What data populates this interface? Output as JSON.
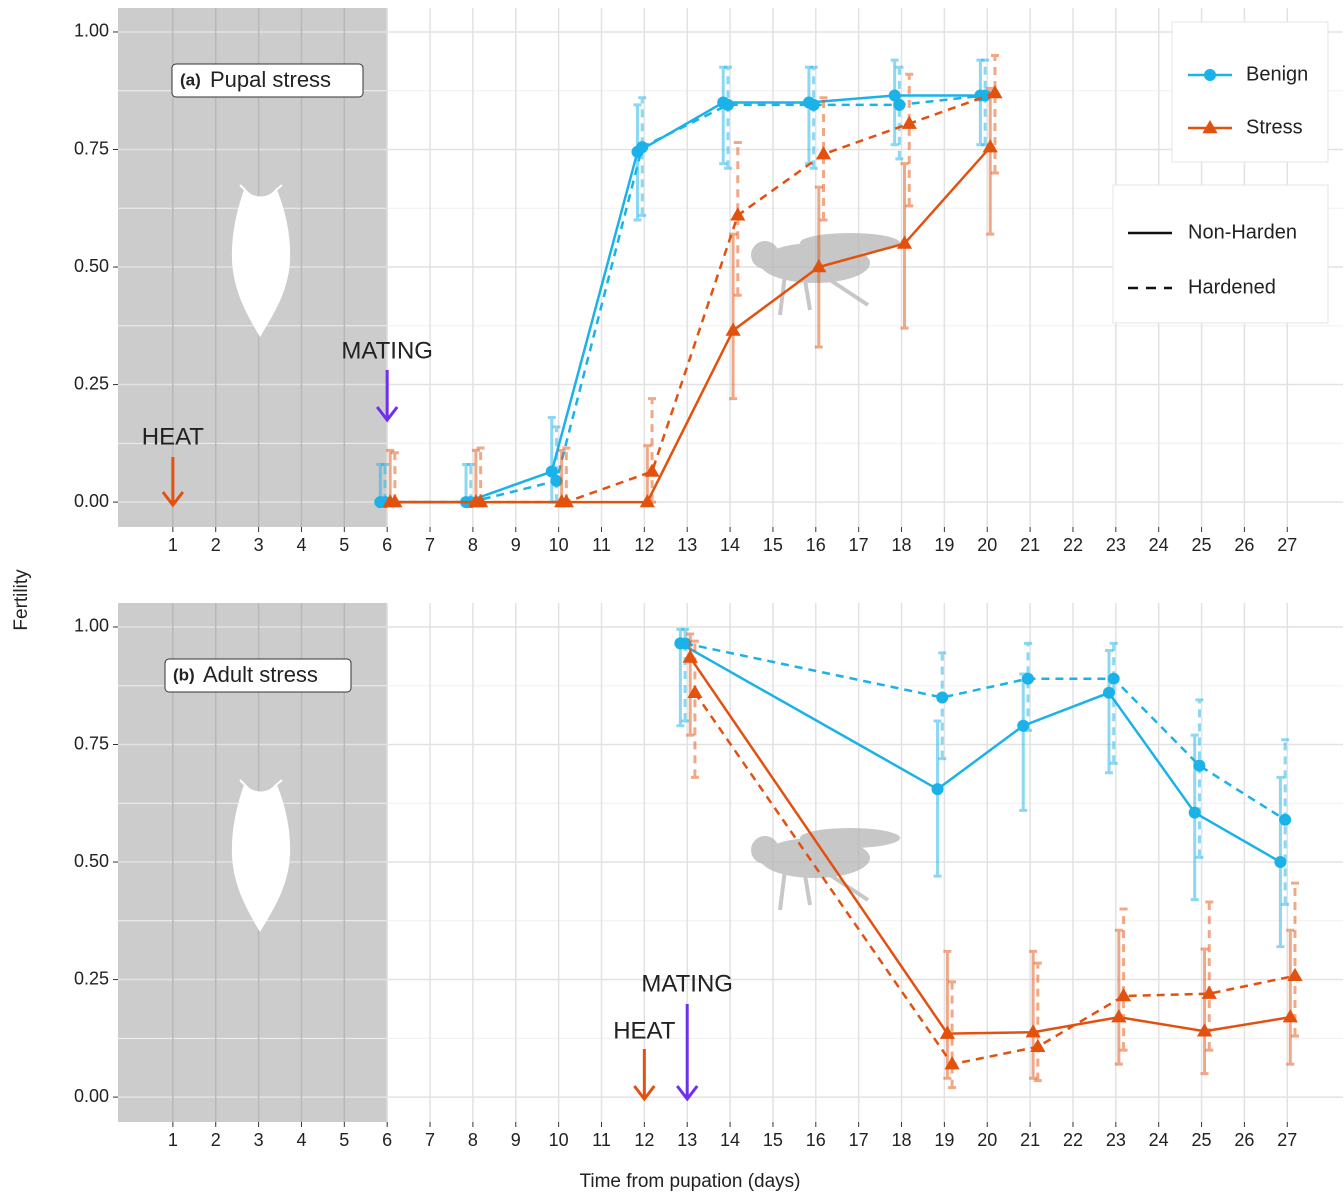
{
  "y_label": "Fertility",
  "x_label": "Time from pupation (days)",
  "legend": {
    "color": [
      {
        "name": "Benign",
        "color": "#1ab2e8",
        "marker": "circle"
      },
      {
        "name": "Stress",
        "color": "#e3510f",
        "marker": "triangle"
      }
    ],
    "linetype": [
      {
        "name": "Non-Harden",
        "dash": "solid"
      },
      {
        "name": "Hardened",
        "dash": "dashed"
      }
    ]
  },
  "chart_data": [
    {
      "type": "line",
      "panel_label": "(a)",
      "title": "Pupal stress",
      "x": [
        6,
        8,
        10,
        12,
        14,
        16,
        18,
        20
      ],
      "shade_end": 6,
      "annotations": [
        {
          "text": "HEAT",
          "x": 1,
          "color": "#e3510f"
        },
        {
          "text": "MATING",
          "x": 6,
          "color": "#6e30ee"
        }
      ],
      "series": [
        {
          "name": "Benign",
          "linetype": "Non-Harden",
          "color": "#1ab2e8",
          "marker": "circle",
          "dash": "solid",
          "values": [
            0,
            0,
            0.065,
            0.745,
            0.85,
            0.85,
            0.865,
            0.865
          ],
          "lower": [
            0,
            0,
            0,
            0.6,
            0.72,
            0.72,
            0.76,
            0.76
          ],
          "upper": [
            0.08,
            0.08,
            0.18,
            0.845,
            0.925,
            0.925,
            0.94,
            0.94
          ]
        },
        {
          "name": "Benign",
          "linetype": "Hardened",
          "color": "#1ab2e8",
          "marker": "circle",
          "dash": "dashed",
          "values": [
            0,
            0,
            0.045,
            0.755,
            0.845,
            0.845,
            0.845,
            0.865
          ],
          "lower": [
            0,
            0,
            0,
            0.61,
            0.71,
            0.71,
            0.73,
            0.76
          ],
          "upper": [
            0.08,
            0.08,
            0.16,
            0.86,
            0.925,
            0.925,
            0.925,
            0.94
          ]
        },
        {
          "name": "Stress",
          "linetype": "Non-Harden",
          "color": "#e3510f",
          "marker": "triangle",
          "dash": "solid",
          "values": [
            0,
            0,
            0,
            0,
            0.365,
            0.5,
            0.55,
            0.755
          ],
          "lower": [
            0,
            0,
            0,
            0,
            0.22,
            0.33,
            0.37,
            0.57
          ],
          "upper": [
            0.11,
            0.11,
            0.11,
            0.12,
            0.57,
            0.67,
            0.72,
            0.88
          ]
        },
        {
          "name": "Stress",
          "linetype": "Hardened",
          "color": "#e3510f",
          "marker": "triangle",
          "dash": "dashed",
          "values": [
            0,
            0,
            0,
            0.065,
            0.61,
            0.74,
            0.805,
            0.87
          ],
          "lower": [
            0,
            0,
            0,
            0,
            0.44,
            0.6,
            0.63,
            0.7
          ],
          "upper": [
            0.105,
            0.115,
            0.115,
            0.22,
            0.765,
            0.86,
            0.91,
            0.95
          ]
        }
      ],
      "xlim": [
        -0.28,
        28.3
      ],
      "ylim": [
        -0.053,
        1.051
      ],
      "xticks": [
        1,
        2,
        3,
        4,
        5,
        6,
        7,
        8,
        9,
        10,
        11,
        12,
        13,
        14,
        15,
        16,
        17,
        18,
        19,
        20,
        21,
        22,
        23,
        24,
        25,
        26,
        27
      ],
      "yticks": [
        {
          "value": 0,
          "label": "0.00"
        },
        {
          "value": 0.25,
          "label": "0.25"
        },
        {
          "value": 0.5,
          "label": "0.50"
        },
        {
          "value": 0.75,
          "label": "0.75"
        },
        {
          "value": 1,
          "label": "1.00"
        }
      ],
      "grid": true
    },
    {
      "type": "line",
      "panel_label": "(b)",
      "title": "Adult stress",
      "x": [
        13,
        19,
        21,
        23,
        25,
        27
      ],
      "shade_end": 6,
      "annotations": [
        {
          "text": "HEAT",
          "x": 12,
          "color": "#e3510f"
        },
        {
          "text": "MATING",
          "x": 13,
          "color": "#6e30ee"
        }
      ],
      "series": [
        {
          "name": "Benign",
          "linetype": "Non-Harden",
          "color": "#1ab2e8",
          "marker": "circle",
          "dash": "solid",
          "values": [
            0.965,
            0.655,
            0.79,
            0.86,
            0.605,
            0.5
          ],
          "lower": [
            0.79,
            0.47,
            0.61,
            0.69,
            0.42,
            0.32
          ],
          "upper": [
            0.995,
            0.8,
            0.9,
            0.95,
            0.77,
            0.68
          ]
        },
        {
          "name": "Benign",
          "linetype": "Hardened",
          "color": "#1ab2e8",
          "marker": "circle",
          "dash": "dashed",
          "values": [
            0.965,
            0.85,
            0.89,
            0.89,
            0.705,
            0.59
          ],
          "lower": [
            0.8,
            0.72,
            0.78,
            0.71,
            0.51,
            0.41
          ],
          "upper": [
            0.995,
            0.945,
            0.965,
            0.965,
            0.845,
            0.76
          ]
        },
        {
          "name": "Stress",
          "linetype": "Non-Harden",
          "color": "#e3510f",
          "marker": "triangle",
          "dash": "solid",
          "values": [
            0.935,
            0.135,
            0.138,
            0.17,
            0.14,
            0.17
          ],
          "lower": [
            0.77,
            0.04,
            0.04,
            0.07,
            0.05,
            0.07
          ],
          "upper": [
            0.985,
            0.31,
            0.31,
            0.355,
            0.315,
            0.355
          ]
        },
        {
          "name": "Stress",
          "linetype": "Hardened",
          "color": "#e3510f",
          "marker": "triangle",
          "dash": "dashed",
          "values": [
            0.86,
            0.07,
            0.107,
            0.215,
            0.22,
            0.258
          ],
          "lower": [
            0.68,
            0.02,
            0.035,
            0.1,
            0.1,
            0.13
          ],
          "upper": [
            0.97,
            0.245,
            0.285,
            0.4,
            0.415,
            0.455
          ]
        }
      ],
      "xlim": [
        -0.28,
        28.3
      ],
      "ylim": [
        -0.053,
        1.051
      ],
      "xticks": [
        1,
        2,
        3,
        4,
        5,
        6,
        7,
        8,
        9,
        10,
        11,
        12,
        13,
        14,
        15,
        16,
        17,
        18,
        19,
        20,
        21,
        22,
        23,
        24,
        25,
        26,
        27
      ],
      "yticks": [
        {
          "value": 0,
          "label": "0.00"
        },
        {
          "value": 0.25,
          "label": "0.25"
        },
        {
          "value": 0.5,
          "label": "0.50"
        },
        {
          "value": 0.75,
          "label": "0.75"
        },
        {
          "value": 1,
          "label": "1.00"
        }
      ],
      "grid": true
    }
  ]
}
